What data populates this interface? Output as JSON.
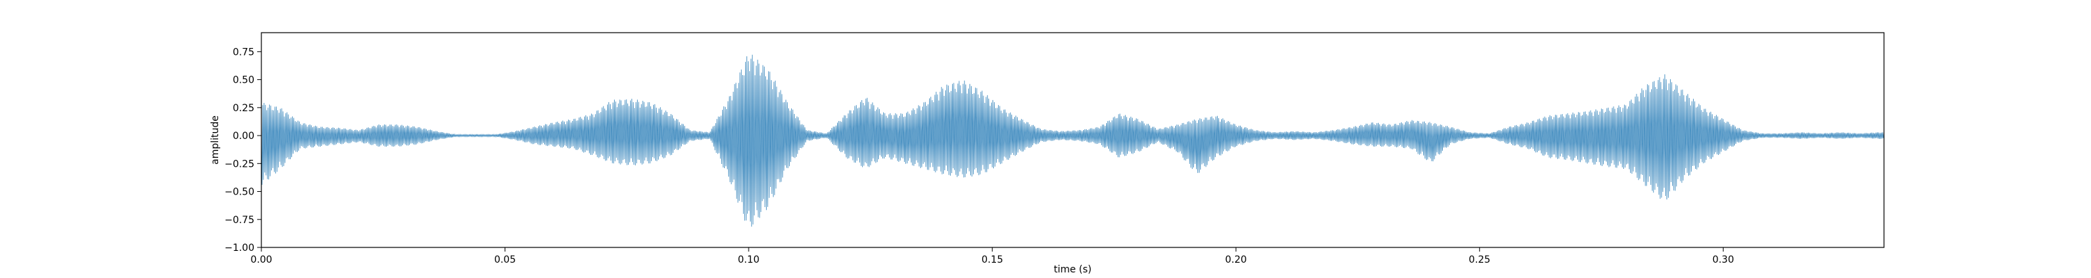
{
  "chart_data": {
    "type": "line",
    "title": "",
    "xlabel": "time (s)",
    "ylabel": "amplitude",
    "xlim": [
      0.0,
      0.333
    ],
    "ylim": [
      -1.0,
      0.92
    ],
    "grid": false,
    "line_color": "#1f77b4",
    "x_ticks": [
      0.0,
      0.05,
      0.1,
      0.15,
      0.2,
      0.25,
      0.3
    ],
    "x_tick_labels": [
      "0.00",
      "0.05",
      "0.10",
      "0.15",
      "0.20",
      "0.25",
      "0.30"
    ],
    "y_ticks": [
      0.75,
      0.5,
      0.25,
      0.0,
      -0.25,
      -0.5,
      -0.75,
      -1.0
    ],
    "y_tick_labels": [
      "0.75",
      "0.50",
      "0.25",
      "0.00",
      "−0.25",
      "−0.50",
      "−0.75",
      "−1.00"
    ],
    "series": [
      {
        "x": [
          0.0,
          0.004,
          0.008,
          0.012,
          0.016,
          0.02,
          0.024,
          0.028,
          0.032,
          0.036,
          0.04,
          0.044,
          0.048,
          0.052,
          0.056,
          0.06,
          0.064,
          0.068,
          0.072,
          0.076,
          0.08,
          0.084,
          0.088,
          0.092,
          0.096,
          0.1,
          0.104,
          0.108,
          0.112,
          0.116,
          0.12,
          0.124,
          0.128,
          0.132,
          0.136,
          0.14,
          0.144,
          0.148,
          0.152,
          0.156,
          0.16,
          0.164,
          0.168,
          0.172,
          0.176,
          0.18,
          0.184,
          0.188,
          0.192,
          0.196,
          0.2,
          0.204,
          0.208,
          0.212,
          0.216,
          0.22,
          0.224,
          0.228,
          0.232,
          0.236,
          0.24,
          0.244,
          0.248,
          0.252,
          0.256,
          0.26,
          0.264,
          0.268,
          0.272,
          0.276,
          0.28,
          0.284,
          0.288,
          0.292,
          0.296,
          0.3,
          0.304,
          0.308,
          0.312,
          0.316,
          0.32,
          0.324,
          0.328,
          0.332
        ],
        "y_max": [
          0.3,
          0.25,
          0.12,
          0.08,
          0.07,
          0.05,
          0.1,
          0.1,
          0.08,
          0.04,
          0.01,
          0.01,
          0.01,
          0.04,
          0.08,
          0.12,
          0.15,
          0.2,
          0.32,
          0.33,
          0.3,
          0.2,
          0.05,
          0.03,
          0.35,
          0.75,
          0.6,
          0.3,
          0.05,
          0.02,
          0.2,
          0.35,
          0.2,
          0.2,
          0.3,
          0.45,
          0.5,
          0.4,
          0.25,
          0.15,
          0.06,
          0.04,
          0.05,
          0.08,
          0.2,
          0.15,
          0.06,
          0.1,
          0.15,
          0.18,
          0.1,
          0.05,
          0.03,
          0.04,
          0.03,
          0.05,
          0.08,
          0.12,
          0.1,
          0.14,
          0.12,
          0.08,
          0.03,
          0.02,
          0.08,
          0.12,
          0.18,
          0.2,
          0.22,
          0.25,
          0.28,
          0.45,
          0.55,
          0.4,
          0.25,
          0.15,
          0.05,
          0.02,
          0.02,
          0.03,
          0.02,
          0.03,
          0.02,
          0.03
        ],
        "y_min": [
          -0.45,
          -0.3,
          -0.12,
          -0.1,
          -0.08,
          -0.06,
          -0.1,
          -0.1,
          -0.08,
          -0.04,
          -0.01,
          -0.01,
          -0.01,
          -0.04,
          -0.08,
          -0.1,
          -0.12,
          -0.18,
          -0.25,
          -0.27,
          -0.25,
          -0.18,
          -0.05,
          -0.03,
          -0.4,
          -0.85,
          -0.65,
          -0.3,
          -0.05,
          -0.02,
          -0.2,
          -0.3,
          -0.2,
          -0.25,
          -0.3,
          -0.35,
          -0.38,
          -0.35,
          -0.25,
          -0.15,
          -0.06,
          -0.04,
          -0.05,
          -0.08,
          -0.2,
          -0.15,
          -0.06,
          -0.15,
          -0.35,
          -0.2,
          -0.1,
          -0.05,
          -0.03,
          -0.04,
          -0.03,
          -0.05,
          -0.08,
          -0.1,
          -0.1,
          -0.12,
          -0.25,
          -0.08,
          -0.03,
          -0.02,
          -0.08,
          -0.12,
          -0.2,
          -0.22,
          -0.25,
          -0.28,
          -0.3,
          -0.45,
          -0.6,
          -0.4,
          -0.25,
          -0.15,
          -0.05,
          -0.02,
          -0.02,
          -0.03,
          -0.02,
          -0.03,
          -0.02,
          -0.03
        ]
      }
    ]
  }
}
